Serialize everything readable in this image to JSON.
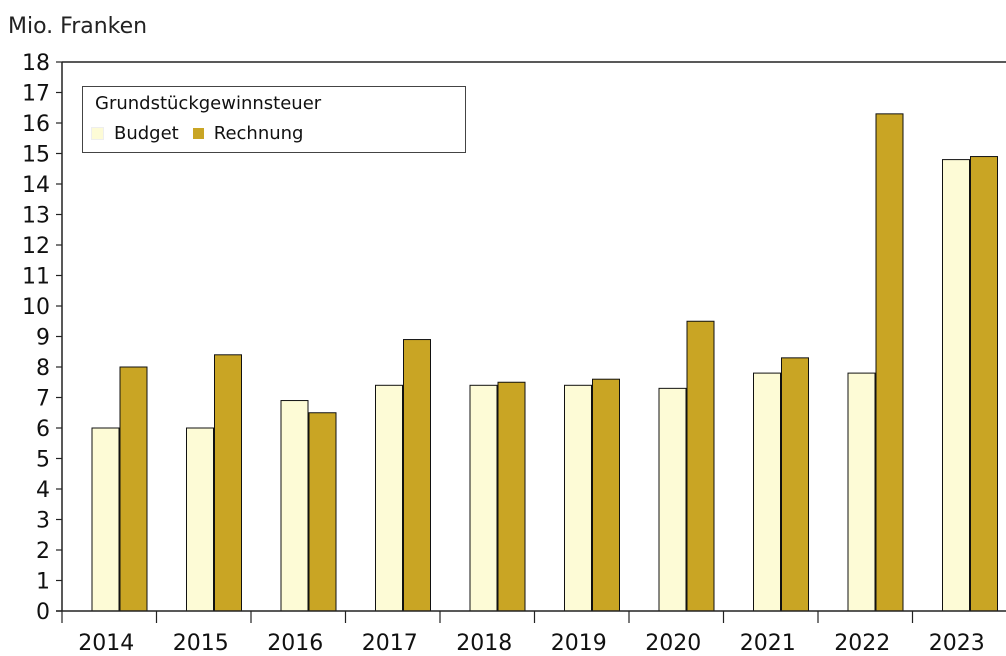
{
  "chart_data": {
    "type": "bar",
    "ylabel": "Mio. Franken",
    "ylim": [
      0,
      18
    ],
    "yticks": [
      "0",
      "1",
      "2",
      "3",
      "4",
      "5",
      "6",
      "7",
      "8",
      "9",
      "10",
      "11",
      "12",
      "13",
      "14",
      "15",
      "16",
      "17",
      "18"
    ],
    "categories": [
      "2014",
      "2015",
      "2016",
      "2017",
      "2018",
      "2019",
      "2020",
      "2021",
      "2022",
      "2023"
    ],
    "legend": {
      "title": "Grundstückgewinnsteuer",
      "placement": "top-left"
    },
    "series": [
      {
        "name": "Budget",
        "color": "#fdfbd6",
        "values": [
          6.0,
          6.0,
          6.9,
          7.4,
          7.4,
          7.4,
          7.3,
          7.8,
          7.8,
          14.8
        ]
      },
      {
        "name": "Rechnung",
        "color": "#c9a524",
        "values": [
          8.0,
          8.4,
          6.5,
          8.9,
          7.5,
          7.6,
          9.5,
          8.3,
          16.3,
          14.9
        ]
      }
    ],
    "grid": false
  }
}
